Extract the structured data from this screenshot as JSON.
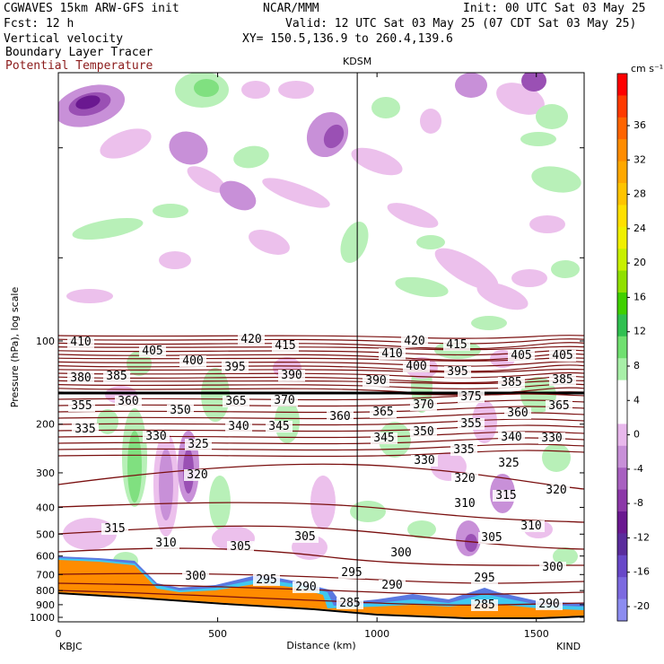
{
  "header": {
    "line1_left": "CGWAVES 15km ARW-GFS init",
    "line1_mid": "NCAR/MMM",
    "line1_right": "Init: 00 UTC Sat 03 May 25",
    "line2_left": "Fcst:   12 h",
    "line2_right": "Valid: 12 UTC Sat 03 May 25 (07 CDT Sat 03 May 25)",
    "line3_left": "Vertical velocity",
    "line3_right": "XY= 150.5,136.9 to 260.4,139.6",
    "line4_left": "Boundary Layer Tracer",
    "line5_left": "Potential Temperature",
    "potential_temperature_color": "#8b1a1a"
  },
  "chart_data": {
    "type": "heatmap",
    "xlabel": "Distance (km)",
    "ylabel": "Pressure (hPa), log scale",
    "xlim": [
      0,
      1650
    ],
    "x_ticks": [
      0,
      500,
      1000,
      1500
    ],
    "y_scale": "log",
    "y_ticks": [
      100,
      200,
      300,
      400,
      500,
      600,
      700,
      800,
      900,
      1000
    ],
    "y_reversed": true,
    "station_marker": {
      "label": "KDSM",
      "x": 938
    },
    "left_end_label": "KBJC",
    "right_end_label": "KIND",
    "colorbar": {
      "unit": "cm s⁻¹",
      "labels": [
        36,
        32,
        28,
        24,
        20,
        16,
        12,
        8,
        4,
        0,
        -4,
        -8,
        -12,
        -16,
        -20
      ],
      "colors": [
        "#ff0000",
        "#ff3a00",
        "#ff6400",
        "#ff8c00",
        "#ffa800",
        "#ffc400",
        "#ffe000",
        "#f0f000",
        "#c8f000",
        "#90e000",
        "#40d000",
        "#30c050",
        "#70e070",
        "#a8f0a8",
        "#ffffff",
        "#ffffff",
        "#e8b8ec",
        "#c890d8",
        "#a860c0",
        "#8c38a8",
        "#6a1890",
        "#5a2c9c",
        "#6848c8",
        "#7c6ae0",
        "#8c8cf0"
      ]
    },
    "theta_labels": [
      420,
      415,
      410,
      405,
      400,
      395,
      390,
      385,
      380,
      375,
      370,
      365,
      360,
      355,
      350,
      345,
      340,
      335,
      330,
      325,
      320,
      315,
      310,
      305,
      300,
      295,
      290,
      285
    ],
    "theta_line_color": "#7a0f0f"
  }
}
